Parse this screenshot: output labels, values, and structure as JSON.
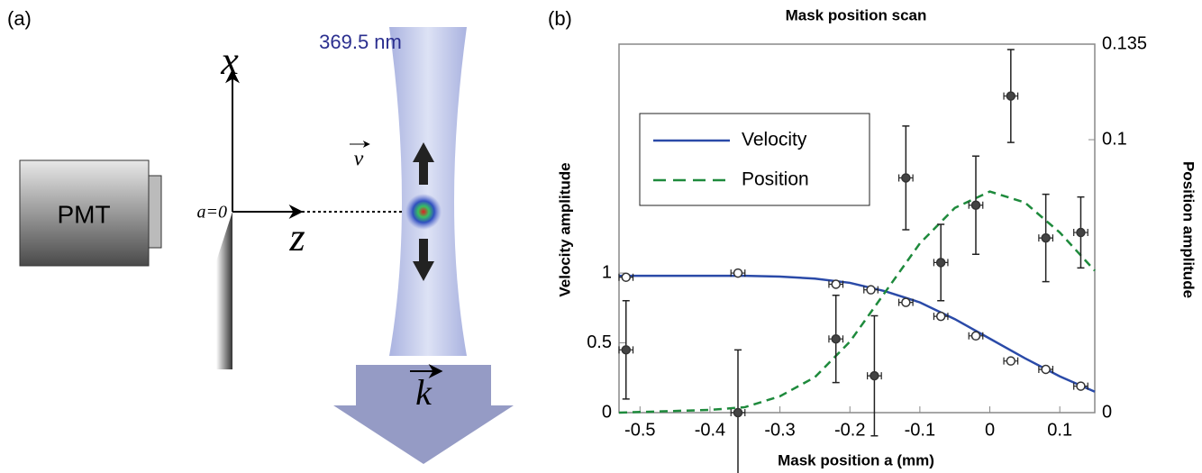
{
  "diagram": {
    "panel_label": "(a)",
    "detector": "PMT",
    "x_axis": "x",
    "z_axis": "z",
    "mask_origin": "a=0",
    "wavelength": "369.5 nm",
    "velocity_symbol": "v",
    "wavevector_symbol": "k"
  },
  "chart_data": {
    "type": "line",
    "panel_label": "(b)",
    "title": "Mask position scan",
    "x_label": "Mask position a (mm)",
    "y_label": "Velocity amplitude",
    "y2_label": "Position amplitude",
    "xlim": [
      -0.53,
      0.15
    ],
    "xticks": [
      -0.5,
      -0.4,
      -0.3,
      -0.2,
      -0.1,
      0,
      0.1
    ],
    "ylim": [
      0,
      2.64
    ],
    "yticks": [
      0,
      0.5,
      1
    ],
    "y2lim": [
      0,
      0.135
    ],
    "y2ticks": [
      0,
      0.1,
      0.135
    ],
    "legend": "upper-left",
    "series": [
      {
        "name": "Velocity",
        "color": "#2a4aa8",
        "dashed": false,
        "x": [
          -0.53,
          -0.45,
          -0.35,
          -0.3,
          -0.25,
          -0.2,
          -0.15,
          -0.1,
          -0.05,
          0,
          0.05,
          0.1,
          0.15
        ],
        "values": [
          0.98,
          0.98,
          0.98,
          0.975,
          0.96,
          0.93,
          0.87,
          0.79,
          0.67,
          0.53,
          0.39,
          0.26,
          0.15
        ]
      },
      {
        "name": "Position",
        "color": "#1e8a3c",
        "dashed": true,
        "axis": "y2",
        "x": [
          -0.53,
          -0.4,
          -0.35,
          -0.3,
          -0.25,
          -0.2,
          -0.15,
          -0.1,
          -0.05,
          0,
          0.05,
          0.1,
          0.15
        ],
        "values": [
          0,
          0.001,
          0.002,
          0.006,
          0.013,
          0.026,
          0.044,
          0.062,
          0.075,
          0.081,
          0.077,
          0.066,
          0.052
        ]
      }
    ],
    "markers": [
      {
        "filled": false,
        "x": [
          -0.52,
          -0.36,
          -0.22,
          -0.17,
          -0.12,
          -0.07,
          -0.02,
          0.03,
          0.08,
          0.13
        ],
        "x_errors": [
          0.01,
          0.01,
          0.01,
          0.01,
          0.01,
          0.01,
          0.01,
          0.01,
          0.01,
          0.01
        ],
        "values": [
          0.97,
          1.0,
          0.92,
          0.88,
          0.79,
          0.69,
          0.55,
          0.37,
          0.31,
          0.19
        ]
      },
      {
        "filled": true,
        "axis": "y2",
        "x": [
          -0.52,
          -0.36,
          -0.22,
          -0.165,
          -0.12,
          -0.07,
          -0.02,
          0.03,
          0.08,
          0.13
        ],
        "x_errors": [
          0.01,
          0.01,
          0.01,
          0.01,
          0.01,
          0.01,
          0.01,
          0.01,
          0.01,
          0.01
        ],
        "values": [
          0.023,
          0,
          0.027,
          0.0135,
          0.086,
          0.055,
          0.076,
          0.116,
          0.064,
          0.066
        ],
        "errors": [
          0.018,
          0.023,
          0.016,
          0.022,
          0.019,
          0.014,
          0.018,
          0.017,
          0.016,
          0.013
        ]
      }
    ]
  }
}
